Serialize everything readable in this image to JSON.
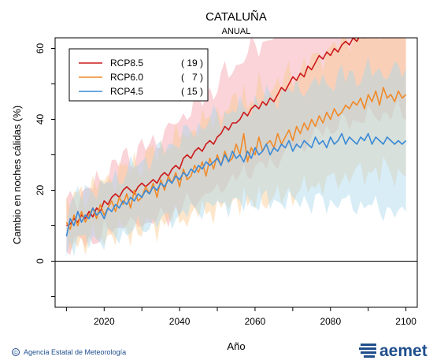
{
  "chart_data": {
    "type": "line",
    "title": "CATALUÑA",
    "subtitle": "ANUAL",
    "xlabel": "Año",
    "ylabel": "Cambio en noches cálidas (%)",
    "xlim": [
      2007,
      2103
    ],
    "ylim": [
      -13,
      63
    ],
    "xticks": [
      2020,
      2040,
      2060,
      2080,
      2100
    ],
    "yticks": [
      0,
      20,
      40,
      60
    ],
    "grid": false,
    "legend_position": "top-left",
    "series": [
      {
        "name": "RCP8.5",
        "count": "( 19 )",
        "color": "#cc1a1a",
        "band_color": "#f4a0aa",
        "x_start": 2010,
        "values": [
          10,
          10.5,
          12,
          11,
          13,
          12,
          14,
          12.5,
          15,
          14,
          17,
          16,
          18,
          19,
          18,
          20,
          21,
          20,
          19,
          21,
          22,
          21,
          22,
          23,
          22,
          24,
          25,
          24,
          26,
          27,
          26,
          29,
          30,
          29,
          31,
          32,
          31,
          33,
          34,
          33,
          35,
          36,
          38,
          37,
          39,
          39,
          40,
          42,
          41,
          43,
          44,
          43,
          45,
          44,
          46,
          45,
          47,
          49,
          48,
          50,
          52,
          51,
          53,
          52,
          55,
          54,
          56,
          58,
          57,
          59,
          58,
          60,
          59,
          61,
          62,
          61,
          63,
          62,
          64,
          63,
          65,
          64,
          66,
          65,
          66,
          67,
          66,
          67,
          68,
          67,
          68
        ]
      },
      {
        "name": "RCP6.0",
        "count": "(   7 )",
        "color": "#f08a28",
        "band_color": "#fbc98e",
        "x_start": 2010,
        "values": [
          11,
          9,
          13,
          10,
          14,
          11,
          13,
          15,
          12,
          16,
          13,
          15,
          17,
          14,
          18,
          16,
          19,
          15,
          20,
          17,
          18,
          21,
          19,
          22,
          18,
          23,
          20,
          24,
          22,
          25,
          21,
          26,
          23,
          24,
          27,
          25,
          28,
          24,
          29,
          26,
          30,
          27,
          31,
          28,
          29,
          33,
          30,
          36,
          28,
          32,
          30,
          35,
          31,
          33,
          34,
          32,
          36,
          33,
          35,
          37,
          34,
          38,
          36,
          39,
          37,
          40,
          38,
          41,
          39,
          42,
          40,
          43,
          41,
          42,
          44,
          43,
          45,
          44,
          46,
          43,
          47,
          45,
          48,
          44,
          49,
          46,
          47,
          45,
          48,
          46,
          47
        ]
      },
      {
        "name": "RCP4.5",
        "count": "( 15 )",
        "color": "#3a8ad6",
        "band_color": "#a8d8ec",
        "x_start": 2010,
        "values": [
          7,
          12,
          10,
          14,
          11,
          13,
          12,
          15,
          13,
          14,
          12,
          15,
          14,
          16,
          15,
          17,
          16,
          18,
          17,
          19,
          18,
          20,
          19,
          21,
          20,
          22,
          21,
          23,
          22,
          24,
          23,
          25,
          24,
          26,
          25,
          27,
          26,
          28,
          27,
          28,
          29,
          27,
          30,
          28,
          31,
          29,
          30,
          28,
          31,
          29,
          32,
          30,
          31,
          33,
          30,
          32,
          31,
          33,
          32,
          34,
          31,
          33,
          32,
          34,
          33,
          32,
          35,
          33,
          34,
          32,
          35,
          33,
          34,
          36,
          33,
          35,
          34,
          33,
          35,
          34,
          36,
          33,
          35,
          34,
          33,
          35,
          34,
          33,
          34,
          33,
          34
        ]
      }
    ]
  },
  "footer": {
    "credit": "Agencia Estatal de Meteorología",
    "copyright_symbol": "©",
    "logo_text": "aemet"
  }
}
